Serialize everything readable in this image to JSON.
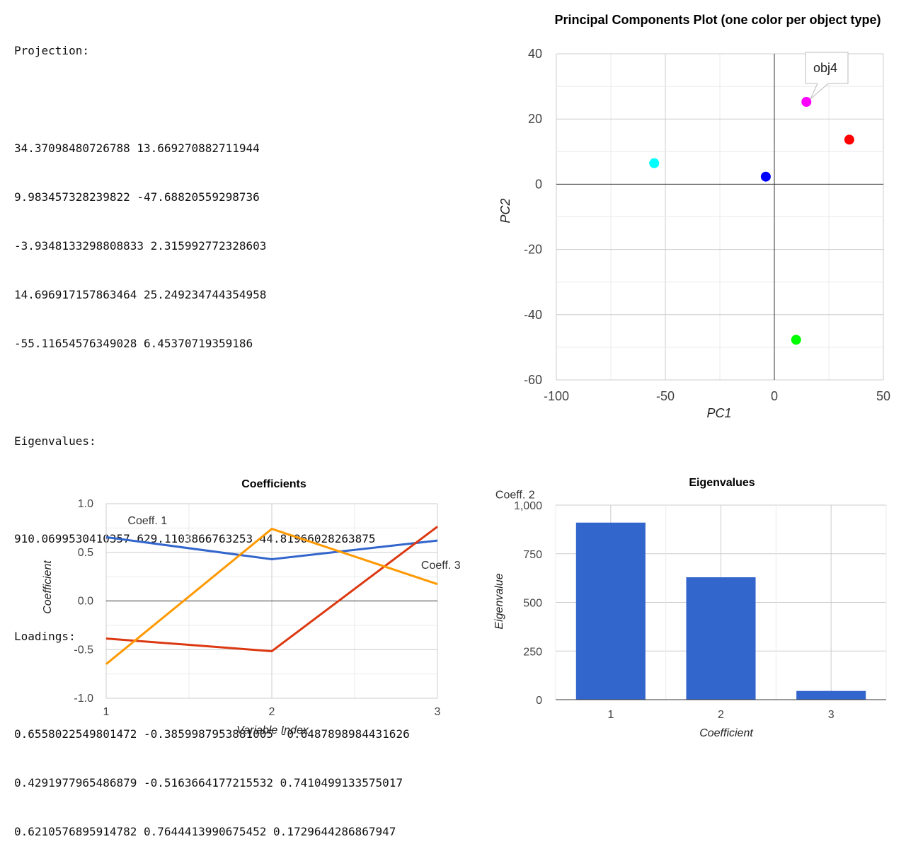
{
  "text_output": {
    "projection_title": "Projection:",
    "projection": [
      "34.37098480726788 13.669270882711944",
      "9.983457328239822 -47.68820559298736",
      "-3.9348133298808833 2.315992772328603",
      "14.696917157863464 25.249234744354958",
      "-55.11654576349028 6.45370719359186"
    ],
    "eigenvalues_title": "Eigenvalues:",
    "eigenvalues": "910.0699530410357 629.1103866763253 44.81966028263875",
    "loadings_title": "Loadings:",
    "loadings": [
      "0.6558022549801472 -0.3859987953881005 -0.6487898984431626",
      "0.4291977965486879 -0.5163664177215532 0.7410499133575017",
      "0.6210576895914782 0.7644413990675452 0.1729644286867947"
    ]
  },
  "chart_data": [
    {
      "id": "pca",
      "type": "scatter",
      "title": "Principal Components Plot (one color per object type)",
      "xlabel": "PC1",
      "ylabel": "PC2",
      "xlim": [
        -100,
        50
      ],
      "ylim": [
        -60,
        40
      ],
      "xticks": [
        -100,
        -50,
        0,
        50
      ],
      "yticks": [
        40,
        20,
        0,
        -20,
        -40,
        -60
      ],
      "grid": true,
      "points": [
        {
          "x": 34.37,
          "y": 13.67,
          "color": "#ff0000"
        },
        {
          "x": 9.98,
          "y": -47.69,
          "color": "#00ff00"
        },
        {
          "x": -3.93,
          "y": 2.32,
          "color": "#0000ff"
        },
        {
          "x": 14.7,
          "y": 25.25,
          "color": "#ff00ff"
        },
        {
          "x": -55.12,
          "y": 6.45,
          "color": "#00ffff"
        }
      ],
      "tooltip": {
        "text": "obj4",
        "point_index": 3
      }
    },
    {
      "id": "coefficients",
      "type": "line",
      "title": "Coefficients",
      "xlabel": "Variable Index",
      "ylabel": "Coefficient",
      "x": [
        1,
        2,
        3
      ],
      "xticks": [
        "1",
        "2",
        "3"
      ],
      "ylim": [
        -1.0,
        1.0
      ],
      "yticks": [
        "1.0",
        "0.5",
        "0.0",
        "-0.5",
        "-1.0"
      ],
      "series": [
        {
          "name": "Coeff. 1",
          "values": [
            0.6558,
            0.4292,
            0.6211
          ],
          "color": "#3366cc"
        },
        {
          "name": "Coeff. 2",
          "values": [
            -0.386,
            -0.5164,
            0.7644
          ],
          "color": "#dc3912"
        },
        {
          "name": "Coeff. 3",
          "values": [
            -0.6488,
            0.741,
            0.173
          ],
          "color": "#ff9900"
        }
      ]
    },
    {
      "id": "eigen",
      "type": "bar",
      "title": "Eigenvalues",
      "xlabel": "Coefficient",
      "ylabel": "Eigenvalue",
      "categories": [
        "1",
        "2",
        "3"
      ],
      "values": [
        910.07,
        629.11,
        44.82
      ],
      "ylim": [
        0,
        1000
      ],
      "yticks": [
        "1,000",
        "750",
        "500",
        "250",
        "0"
      ],
      "color": "#3366cc"
    }
  ]
}
